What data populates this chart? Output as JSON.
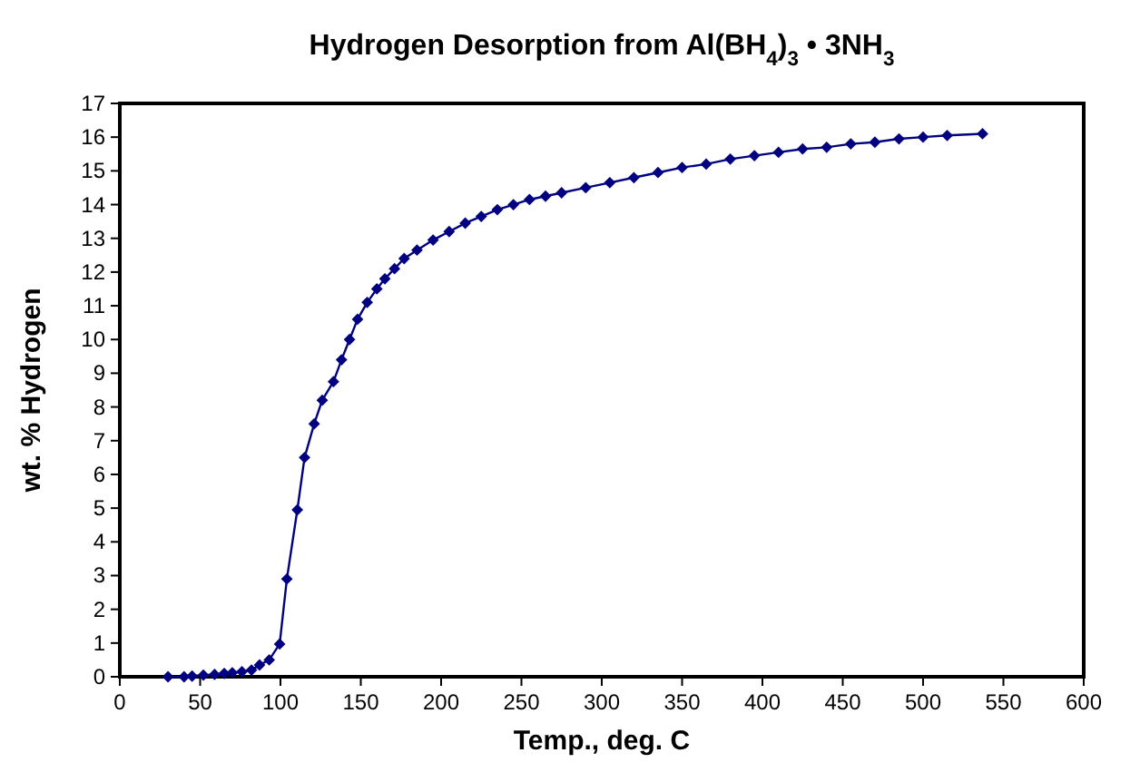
{
  "chart_data": {
    "type": "line",
    "title": "Hydrogen Desorption from Al(BH$_{4}$)$_{3}$ • 3NH$_{3}$",
    "xlabel": "Temp., deg. C",
    "ylabel": "wt. % Hydrogen",
    "xlim": [
      0,
      600
    ],
    "xticks": [
      0,
      50,
      100,
      150,
      200,
      250,
      300,
      350,
      400,
      450,
      500,
      550,
      600
    ],
    "ylim": [
      0,
      17
    ],
    "yticks": [
      0,
      1,
      2,
      3,
      4,
      5,
      6,
      7,
      8,
      9,
      10,
      11,
      12,
      13,
      14,
      15,
      16,
      17
    ],
    "grid": false,
    "marker": "diamond",
    "line_style": "solid",
    "series": [
      {
        "color": "#000080",
        "x": [
          30,
          40,
          45,
          52,
          59,
          65,
          70,
          76,
          82,
          87,
          93,
          99.5,
          104,
          110.5,
          115,
          121,
          126,
          133,
          138,
          143,
          148,
          154,
          160,
          165,
          171,
          177,
          185,
          195,
          205,
          215,
          225,
          235,
          245,
          255,
          265,
          275,
          290,
          305,
          320,
          335,
          350,
          365,
          380,
          395,
          410,
          425,
          440,
          455,
          470,
          485,
          500,
          515,
          537
        ],
        "values": [
          0,
          0,
          0.02,
          0.05,
          0.07,
          0.1,
          0.12,
          0.15,
          0.2,
          0.35,
          0.5,
          0.97,
          2.9,
          4.95,
          6.5,
          7.5,
          8.2,
          8.75,
          9.4,
          10.0,
          10.6,
          11.1,
          11.5,
          11.8,
          12.1,
          12.4,
          12.65,
          12.95,
          13.2,
          13.45,
          13.65,
          13.85,
          14.0,
          14.15,
          14.25,
          14.35,
          14.5,
          14.65,
          14.8,
          14.95,
          15.1,
          15.2,
          15.35,
          15.45,
          15.55,
          15.65,
          15.7,
          15.8,
          15.85,
          15.95,
          16.0,
          16.05,
          16.1
        ]
      }
    ]
  }
}
